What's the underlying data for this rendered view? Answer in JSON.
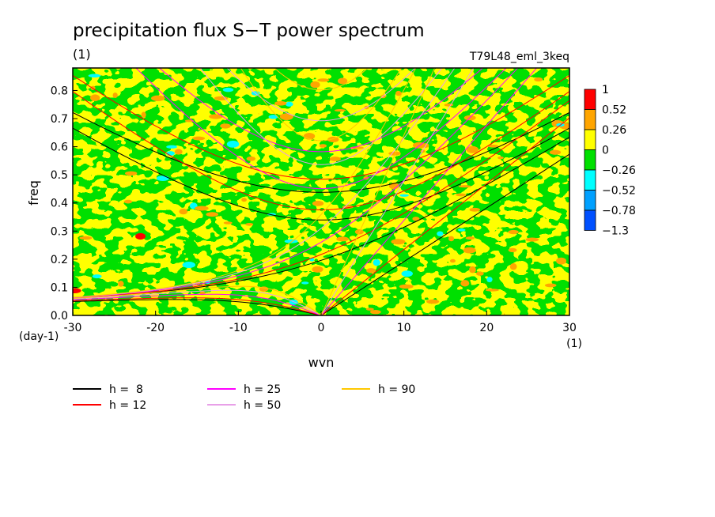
{
  "chart_data": {
    "type": "heatmap",
    "title": "precipitation flux S−T power spectrum",
    "title_unit": "(1)",
    "experiment": "T79L48_eml_3keq",
    "xlabel": "wvn",
    "x_unit": "(1)",
    "ylabel": "freq",
    "y_unit": "(day-1)",
    "xlim": [
      -30,
      30
    ],
    "ylim": [
      0,
      0.88
    ],
    "x_ticks": [
      -30,
      -20,
      -10,
      0,
      10,
      20,
      30
    ],
    "y_ticks": [
      0.0,
      0.1,
      0.2,
      0.3,
      0.4,
      0.5,
      0.6,
      0.7,
      0.8
    ],
    "colorbar": {
      "labels": [
        "1",
        "0.52",
        "0.26",
        "0",
        "−0.26",
        "−0.52",
        "−0.78",
        "−1.3"
      ],
      "colors": [
        "#ff0000",
        "#ffa500",
        "#ffff00",
        "#00e000",
        "#00ffff",
        "#00a0ff",
        "#0050ff"
      ],
      "levels": [
        1,
        0.52,
        0.26,
        0,
        -0.26,
        -0.52,
        -0.78,
        -1.3
      ]
    },
    "background_field": "mostly yellow and green (values between -0.26 and 0.26), scattered orange patches, small cyan patches at low wavenumber",
    "dispersion_curves": [
      {
        "label": "h =  8",
        "h": 8,
        "color": "#000000"
      },
      {
        "label": "h = 12",
        "h": 12,
        "color": "#ff0000"
      },
      {
        "label": "h = 25",
        "h": 25,
        "color": "#ff00ff"
      },
      {
        "label": "h = 50",
        "h": 50,
        "color": "#e8a0e8"
      },
      {
        "label": "h = 90",
        "h": 90,
        "color": "#ffc800"
      }
    ]
  }
}
